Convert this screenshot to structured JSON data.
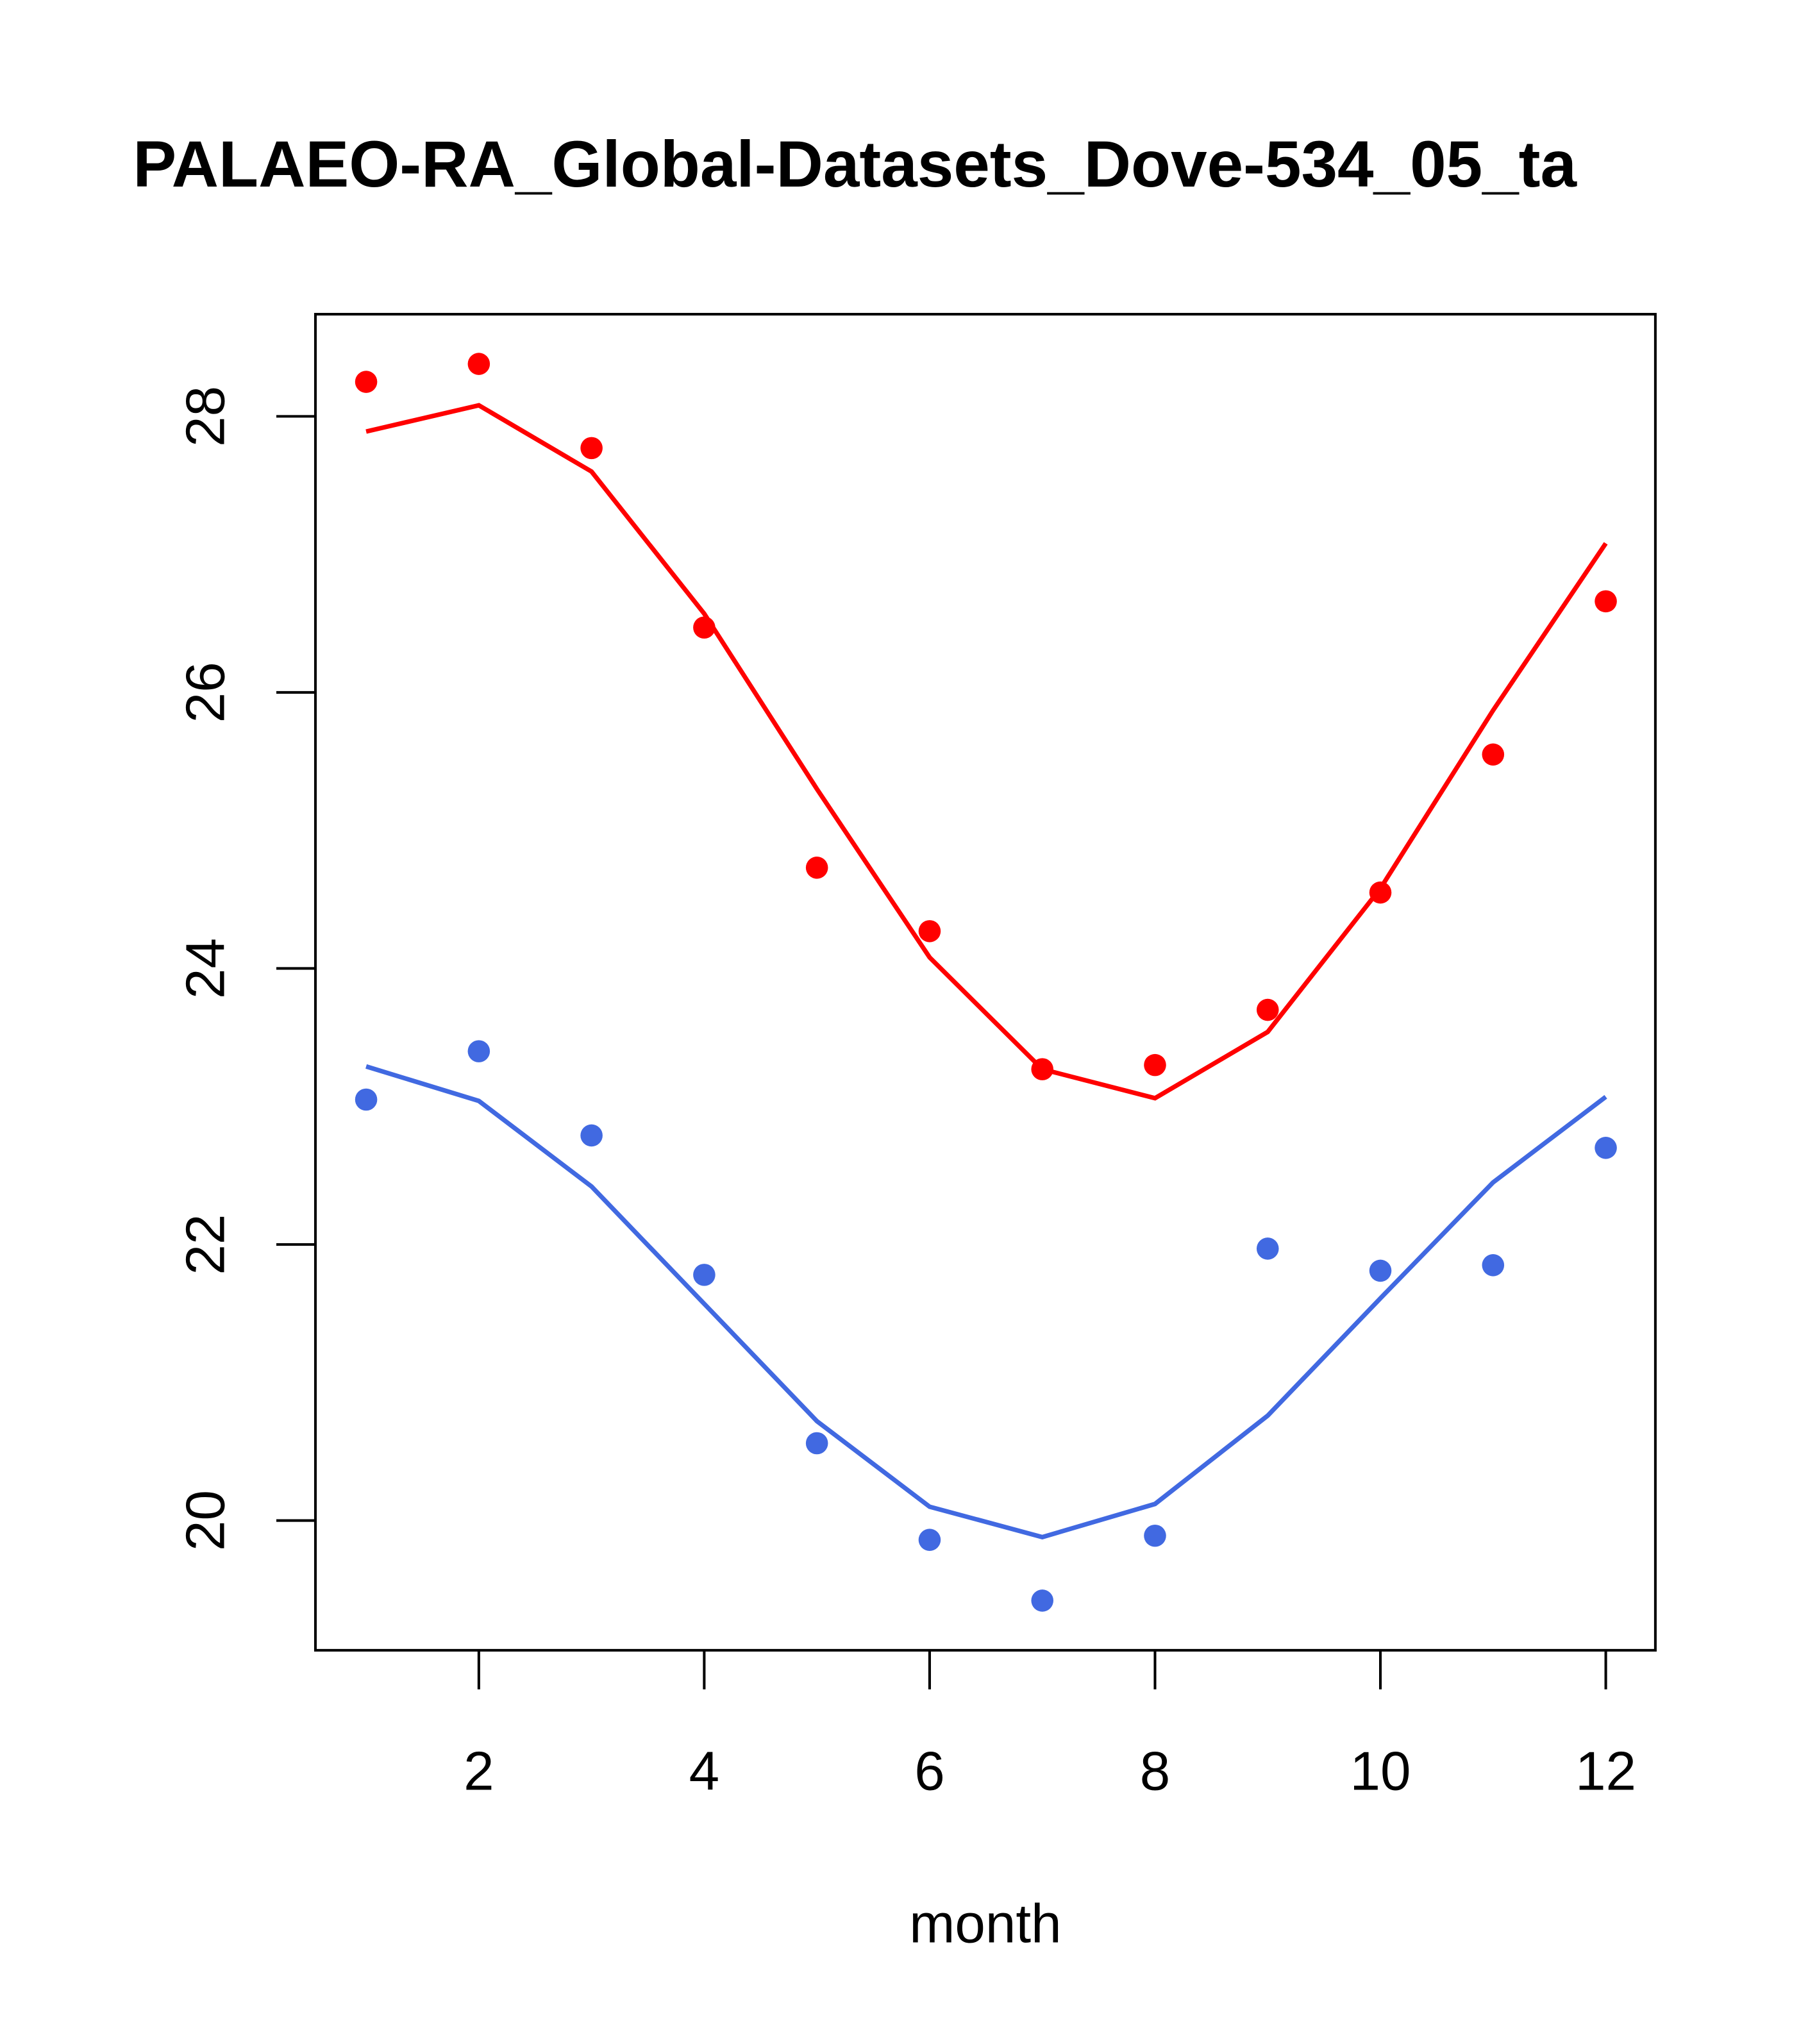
{
  "chart_data": {
    "type": "line",
    "title": "PALAEO-RA_Global-Datasets_Dove-534_05_ta",
    "xlabel": "month",
    "ylabel": "",
    "xlim": [
      0.55,
      12.44
    ],
    "ylim": [
      19.06,
      28.74
    ],
    "xticks": [
      2,
      4,
      6,
      8,
      10,
      12
    ],
    "yticks": [
      20,
      22,
      24,
      26,
      28
    ],
    "grid": false,
    "x": [
      1,
      2,
      3,
      4,
      5,
      6,
      7,
      8,
      9,
      10,
      11,
      12
    ],
    "series": [
      {
        "name": "red points",
        "kind": "points",
        "color": "#ff0000",
        "values": [
          28.25,
          28.38,
          27.77,
          26.47,
          24.73,
          24.27,
          23.27,
          23.3,
          23.7,
          24.55,
          25.55,
          26.66
        ]
      },
      {
        "name": "red line",
        "kind": "line",
        "color": "#ff0000",
        "values": [
          27.89,
          28.08,
          27.6,
          26.57,
          25.3,
          24.08,
          23.27,
          23.06,
          23.54,
          24.58,
          25.87,
          27.08
        ]
      },
      {
        "name": "blue points",
        "kind": "points",
        "color": "#4169e1",
        "values": [
          23.05,
          23.4,
          22.79,
          21.78,
          20.56,
          19.86,
          19.42,
          19.89,
          21.97,
          21.81,
          21.85,
          22.7
        ]
      },
      {
        "name": "blue line",
        "kind": "line",
        "color": "#4169e1",
        "values": [
          23.29,
          23.04,
          22.42,
          21.57,
          20.72,
          20.1,
          19.88,
          20.12,
          20.76,
          21.61,
          22.45,
          23.07
        ]
      }
    ]
  }
}
